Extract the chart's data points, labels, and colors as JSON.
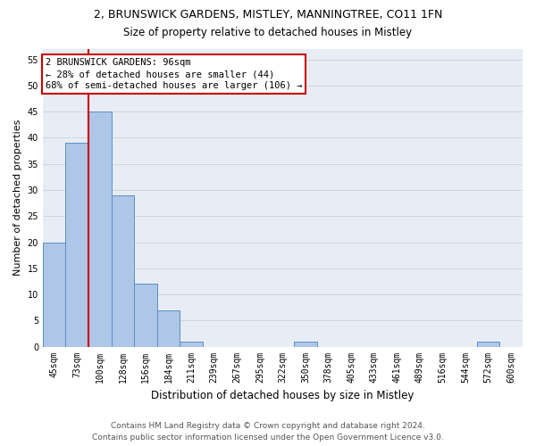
{
  "title_line1": "2, BRUNSWICK GARDENS, MISTLEY, MANNINGTREE, CO11 1FN",
  "title_line2": "Size of property relative to detached houses in Mistley",
  "xlabel": "Distribution of detached houses by size in Mistley",
  "ylabel": "Number of detached properties",
  "footer_line1": "Contains HM Land Registry data © Crown copyright and database right 2024.",
  "footer_line2": "Contains public sector information licensed under the Open Government Licence v3.0.",
  "bin_labels": [
    "45sqm",
    "73sqm",
    "100sqm",
    "128sqm",
    "156sqm",
    "184sqm",
    "211sqm",
    "239sqm",
    "267sqm",
    "295sqm",
    "322sqm",
    "350sqm",
    "378sqm",
    "405sqm",
    "433sqm",
    "461sqm",
    "489sqm",
    "516sqm",
    "544sqm",
    "572sqm",
    "600sqm"
  ],
  "bar_values": [
    20,
    39,
    45,
    29,
    12,
    7,
    1,
    0,
    0,
    0,
    0,
    1,
    0,
    0,
    0,
    0,
    0,
    0,
    0,
    1,
    0
  ],
  "bar_color": "#aec6e8",
  "bar_edge_color": "#5a8fc2",
  "vline_color": "#cc0000",
  "vline_x_index": 1.5,
  "annotation_box_text": "2 BRUNSWICK GARDENS: 96sqm\n← 28% of detached houses are smaller (44)\n68% of semi-detached houses are larger (106) →",
  "annotation_box_facecolor": "white",
  "annotation_box_edgecolor": "#cc0000",
  "ylim": [
    0,
    57
  ],
  "yticks": [
    0,
    5,
    10,
    15,
    20,
    25,
    30,
    35,
    40,
    45,
    50,
    55
  ],
  "grid_color": "#cdd5e0",
  "bg_color": "#e8edf5",
  "title_fontsize": 9,
  "subtitle_fontsize": 8.5,
  "footer_fontsize": 6.5,
  "ylabel_fontsize": 8,
  "xlabel_fontsize": 8.5,
  "tick_fontsize": 7,
  "ann_fontsize": 7.5
}
